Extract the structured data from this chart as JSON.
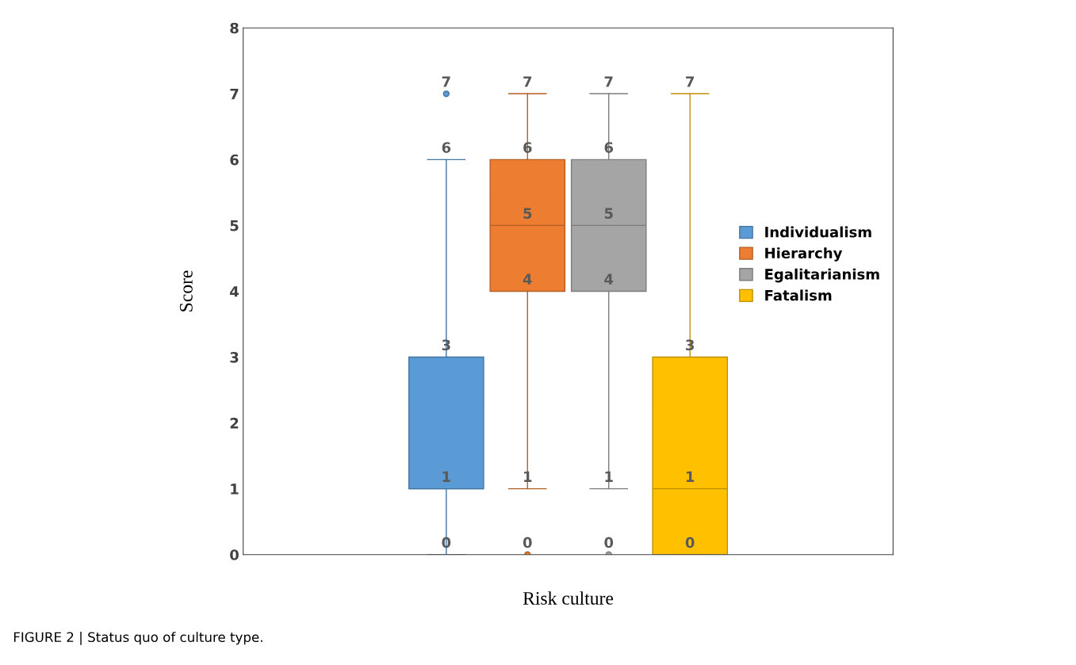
{
  "chart_data": {
    "type": "box",
    "xlabel": "Risk culture",
    "ylabel": "Score",
    "categories": [
      null
    ],
    "series": [
      {
        "name": "Individualism",
        "color": "#5b9bd5",
        "boxes": [
          {
            "low": 0,
            "q1": 1,
            "median": 1,
            "q3": 3,
            "high": 6,
            "outliers": [
              7
            ]
          }
        ],
        "value_labels": [
          [
            "0",
            "1",
            "3",
            "6",
            "7"
          ]
        ]
      },
      {
        "name": "Hierarchy",
        "color": "#ed7d31",
        "boxes": [
          {
            "low": 1,
            "q1": 4,
            "median": 5,
            "q3": 6,
            "high": 7,
            "outliers": [
              0
            ]
          }
        ],
        "value_labels": [
          [
            "0",
            "1",
            "4",
            "5",
            "6",
            "7"
          ]
        ]
      },
      {
        "name": "Egalitarianism",
        "color": "#a5a5a5",
        "boxes": [
          {
            "low": 1,
            "q1": 4,
            "median": 5,
            "q3": 6,
            "high": 7,
            "outliers": [
              0
            ]
          }
        ],
        "value_labels": [
          [
            "0",
            "1",
            "4",
            "5",
            "6",
            "7"
          ]
        ]
      },
      {
        "name": "Fatalism",
        "color": "#ffc000",
        "boxes": [
          {
            "low": 0,
            "q1": 0,
            "median": 1,
            "q3": 3,
            "high": 7
          }
        ],
        "value_labels": [
          [
            "0",
            "1",
            "3",
            "7"
          ]
        ]
      }
    ],
    "ylim": [
      0,
      8
    ],
    "yticks": [
      0,
      1,
      2,
      3,
      4,
      5,
      6,
      7,
      8
    ],
    "legend": "right",
    "grid": false,
    "annotations": [
      "FIGURE 2 | Status quo of culture type."
    ]
  }
}
